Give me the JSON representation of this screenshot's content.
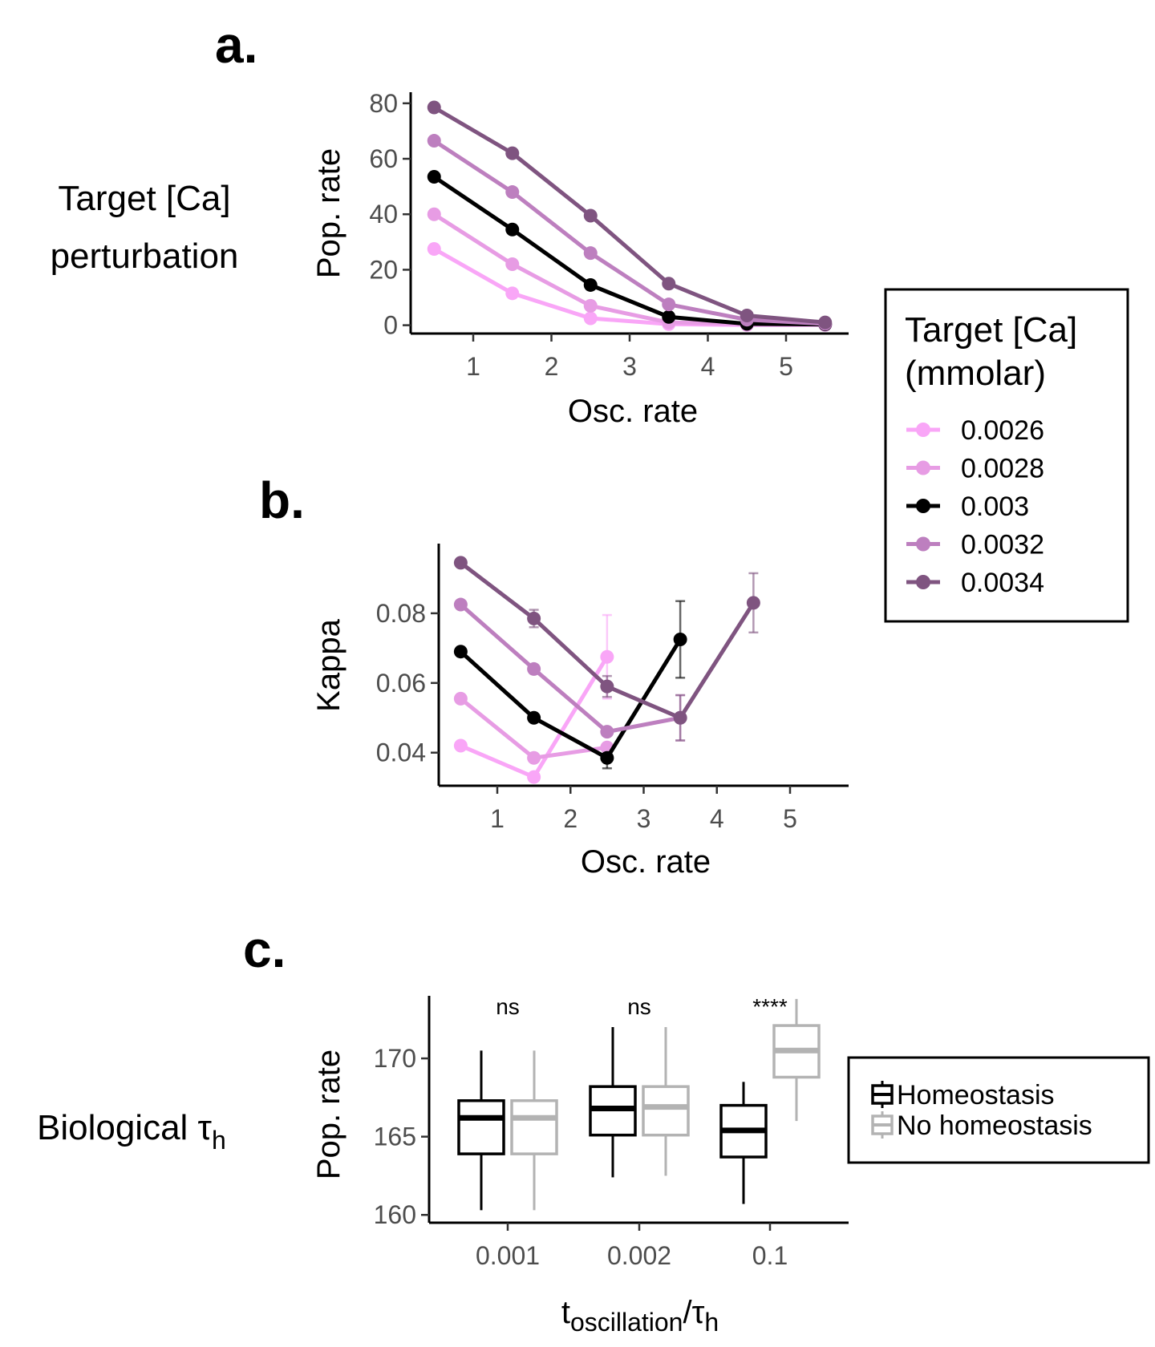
{
  "chart_data": [
    {
      "id": "a",
      "type": "line",
      "panel_label": "a.",
      "row_label": [
        "Target [Ca]",
        "perturbation"
      ],
      "xlabel": "Osc. rate",
      "ylabel": "Pop. rate",
      "xlim": [
        0.2,
        5.8
      ],
      "ylim": [
        -3,
        84
      ],
      "xticks": [
        1,
        2,
        3,
        4,
        5
      ],
      "yticks": [
        0,
        20,
        40,
        60,
        80
      ],
      "x": [
        0.5,
        1.5,
        2.5,
        3.5,
        4.5,
        5.5
      ],
      "series": [
        {
          "name": "0.0026",
          "color": "#f9a6f7",
          "values": [
            27.5,
            11.5,
            2.5,
            0.4,
            0.1,
            0.1
          ]
        },
        {
          "name": "0.0028",
          "color": "#e79ce4",
          "values": [
            40,
            22,
            7,
            1,
            0.5,
            0.2
          ]
        },
        {
          "name": "0.003",
          "color": "#000000",
          "values": [
            53.5,
            34.5,
            14.5,
            3,
            0.5,
            0.3
          ]
        },
        {
          "name": "0.0032",
          "color": "#bd7fbf",
          "values": [
            66.5,
            48,
            26,
            7.5,
            2,
            0.5
          ]
        },
        {
          "name": "0.0034",
          "color": "#7f5480",
          "values": [
            78.5,
            62,
            39.5,
            15,
            3.5,
            1
          ]
        }
      ]
    },
    {
      "id": "b",
      "type": "line",
      "panel_label": "b.",
      "xlabel": "Osc. rate",
      "ylabel": "Kappa",
      "xlim": [
        0.2,
        5.8
      ],
      "ylim": [
        0.0305,
        0.1
      ],
      "xticks": [
        1,
        2,
        3,
        4,
        5
      ],
      "yticks": [
        0.04,
        0.06,
        0.08
      ],
      "ytick_labels": [
        "0.04",
        "0.06",
        "0.08"
      ],
      "series": [
        {
          "name": "0.0026",
          "color": "#f9a6f7",
          "x": [
            0.5,
            1.5,
            2.5
          ],
          "values": [
            0.042,
            0.033,
            0.0675
          ],
          "err": [
            0,
            0,
            0.012
          ]
        },
        {
          "name": "0.0028",
          "color": "#e79ce4",
          "x": [
            0.5,
            1.5,
            2.5
          ],
          "values": [
            0.0555,
            0.0385,
            0.0415
          ],
          "err": [
            0,
            0,
            0
          ]
        },
        {
          "name": "0.003",
          "color": "#000000",
          "x": [
            0.5,
            1.5,
            2.5,
            3.5
          ],
          "values": [
            0.069,
            0.05,
            0.0385,
            0.0725
          ],
          "err": [
            0,
            0,
            0.003,
            0.011
          ]
        },
        {
          "name": "0.0032",
          "color": "#bd7fbf",
          "x": [
            0.5,
            1.5,
            2.5,
            3.5
          ],
          "values": [
            0.0825,
            0.064,
            0.046,
            0.05
          ],
          "err": [
            0,
            0,
            0,
            0.0065
          ]
        },
        {
          "name": "0.0034",
          "color": "#7f5480",
          "x": [
            0.5,
            1.5,
            2.5,
            3.5,
            4.5
          ],
          "values": [
            0.0945,
            0.0785,
            0.059,
            0.05,
            0.083
          ],
          "err": [
            0,
            0.0025,
            0.003,
            0.0065,
            0.0085
          ]
        }
      ]
    },
    {
      "id": "c",
      "type": "box",
      "panel_label": "c.",
      "row_label_main": "Biological τ",
      "row_label_sub": "h",
      "xlabel_main": "t",
      "xlabel_sub": "oscillation",
      "xlabel_mid": "/τ",
      "xlabel_sub2": "h",
      "ylabel": "Pop. rate",
      "ylim": [
        159.5,
        174
      ],
      "yticks": [
        160,
        165,
        170
      ],
      "categories": [
        "0.001",
        "0.002",
        "0.1"
      ],
      "significance": [
        "ns",
        "ns",
        "****"
      ],
      "series": [
        {
          "name": "Homeostasis",
          "color": "#000000",
          "boxes": [
            {
              "min": 160.3,
              "q1": 163.9,
              "median": 166.2,
              "q3": 167.3,
              "max": 170.5
            },
            {
              "min": 162.4,
              "q1": 165.1,
              "median": 166.8,
              "q3": 168.2,
              "max": 172
            },
            {
              "min": 160.7,
              "q1": 163.7,
              "median": 165.4,
              "q3": 167,
              "max": 168.5
            }
          ]
        },
        {
          "name": "No homeostasis",
          "color": "#b3b3b3",
          "boxes": [
            {
              "min": 160.3,
              "q1": 163.9,
              "median": 166.2,
              "q3": 167.3,
              "max": 170.5
            },
            {
              "min": 162.5,
              "q1": 165.1,
              "median": 166.9,
              "q3": 168.2,
              "max": 172
            },
            {
              "min": 166.0,
              "q1": 168.8,
              "median": 170.5,
              "q3": 172.1,
              "max": 173.8
            }
          ]
        }
      ]
    }
  ],
  "legend_a": {
    "title": [
      "Target [Ca]",
      "(mmolar)"
    ]
  }
}
